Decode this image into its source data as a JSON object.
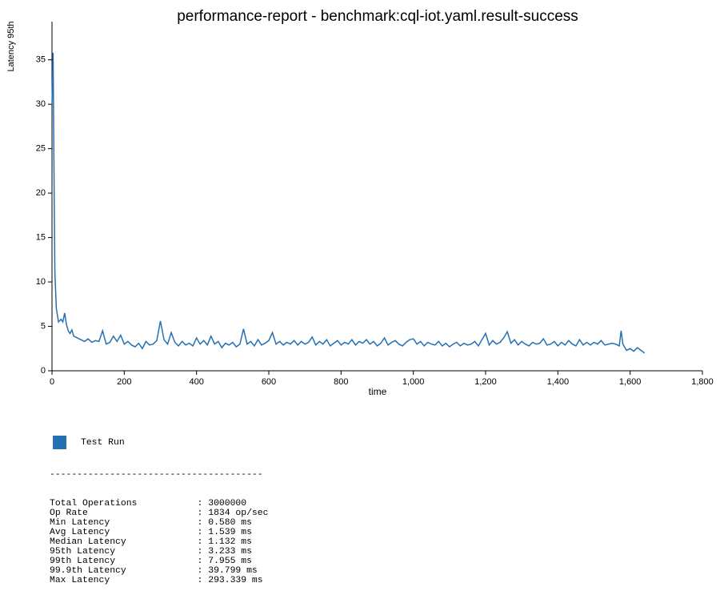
{
  "chart_data": {
    "type": "line",
    "title": "performance-report - benchmark:cql-iot.yaml.result-success",
    "x_label": "time",
    "y_label": "Latency 95th",
    "xlim": [
      0,
      1800
    ],
    "xticks": [
      0,
      200,
      400,
      600,
      800,
      {
        "value": 1000,
        "label": "1,000"
      },
      {
        "value": 1200,
        "label": "1,200"
      },
      {
        "value": 1400,
        "label": "1,400"
      },
      {
        "value": 1600,
        "label": "1,600"
      },
      {
        "value": 1800,
        "label": "1,800"
      }
    ],
    "ylim": [
      0,
      39.3
    ],
    "yticks": [
      0,
      5,
      10,
      15,
      20,
      25,
      30,
      35
    ],
    "x": [
      0,
      3,
      6,
      8,
      12,
      18,
      25,
      30,
      35,
      40,
      45,
      50,
      55,
      60,
      70,
      80,
      90,
      100,
      110,
      120,
      130,
      140,
      150,
      160,
      170,
      180,
      190,
      200,
      210,
      220,
      230,
      240,
      250,
      260,
      270,
      280,
      290,
      300,
      310,
      320,
      330,
      340,
      350,
      360,
      370,
      380,
      390,
      400,
      410,
      420,
      430,
      440,
      450,
      460,
      470,
      480,
      490,
      500,
      510,
      520,
      530,
      540,
      550,
      560,
      570,
      580,
      590,
      600,
      610,
      620,
      630,
      640,
      650,
      660,
      670,
      680,
      690,
      700,
      710,
      720,
      730,
      740,
      750,
      760,
      770,
      780,
      790,
      800,
      810,
      820,
      830,
      840,
      850,
      860,
      870,
      880,
      890,
      900,
      910,
      920,
      930,
      940,
      950,
      960,
      970,
      980,
      990,
      1000,
      1010,
      1020,
      1030,
      1040,
      1050,
      1060,
      1070,
      1080,
      1090,
      1100,
      1110,
      1120,
      1130,
      1140,
      1150,
      1160,
      1170,
      1180,
      1190,
      1200,
      1210,
      1220,
      1230,
      1240,
      1250,
      1260,
      1270,
      1280,
      1290,
      1300,
      1310,
      1320,
      1330,
      1340,
      1350,
      1360,
      1370,
      1380,
      1390,
      1400,
      1410,
      1420,
      1430,
      1440,
      1450,
      1460,
      1470,
      1480,
      1490,
      1500,
      1510,
      1520,
      1530,
      1540,
      1550,
      1560,
      1570,
      1575,
      1580,
      1590,
      1600,
      1610,
      1620,
      1630,
      1640
    ],
    "series": [
      {
        "name": "Test Run",
        "color": "#2470b3",
        "values": [
          30,
          35.8,
          20,
          11,
          7,
          5.5,
          5.8,
          5.5,
          6.5,
          5.2,
          4.5,
          4.2,
          4.6,
          3.9,
          3.7,
          3.5,
          3.3,
          3.6,
          3.2,
          3.4,
          3.3,
          4.5,
          3.0,
          3.2,
          3.9,
          3.3,
          4.0,
          3.0,
          3.3,
          2.9,
          2.7,
          3.1,
          2.5,
          3.3,
          2.9,
          3.0,
          3.4,
          5.6,
          3.5,
          3.0,
          4.3,
          3.2,
          2.8,
          3.3,
          2.9,
          3.1,
          2.8,
          3.7,
          3.0,
          3.4,
          2.9,
          3.9,
          3.0,
          3.3,
          2.6,
          3.1,
          2.9,
          3.2,
          2.7,
          3.0,
          4.7,
          3.0,
          3.3,
          2.8,
          3.5,
          2.9,
          3.1,
          3.4,
          4.3,
          3.0,
          3.3,
          2.9,
          3.2,
          3.0,
          3.4,
          2.9,
          3.3,
          3.0,
          3.2,
          3.8,
          2.9,
          3.3,
          3.0,
          3.5,
          2.8,
          3.1,
          3.4,
          2.9,
          3.2,
          3.0,
          3.5,
          2.9,
          3.3,
          3.1,
          3.5,
          3.0,
          3.3,
          2.8,
          3.1,
          3.7,
          2.9,
          3.2,
          3.4,
          3.0,
          2.8,
          3.2,
          3.5,
          3.6,
          3.0,
          3.3,
          2.8,
          3.2,
          3.0,
          2.9,
          3.3,
          2.8,
          3.1,
          2.7,
          3.0,
          3.2,
          2.8,
          3.1,
          2.9,
          3.0,
          3.3,
          2.8,
          3.5,
          4.2,
          2.9,
          3.4,
          3.0,
          3.2,
          3.7,
          4.4,
          3.1,
          3.5,
          2.9,
          3.3,
          3.0,
          2.8,
          3.2,
          3.0,
          3.1,
          3.6,
          2.9,
          3.0,
          3.3,
          2.8,
          3.2,
          2.9,
          3.4,
          3.0,
          2.8,
          3.5,
          2.9,
          3.2,
          2.9,
          3.2,
          3.0,
          3.4,
          2.9,
          3.0,
          3.1,
          3.0,
          2.8,
          4.5,
          3.0,
          2.3,
          2.5,
          2.2,
          2.6,
          2.3,
          2.0
        ]
      }
    ],
    "stats": {
      "rule": "---------------------------------------",
      "rows": [
        "Total Operations           : 3000000",
        "Op Rate                    : 1834 op/sec",
        "Min Latency                : 0.580 ms",
        "Avg Latency                : 1.539 ms",
        "Median Latency             : 1.132 ms",
        "95th Latency               : 3.233 ms",
        "99th Latency               : 7.955 ms",
        "99.9th Latency             : 39.799 ms",
        "Max Latency                : 293.339 ms"
      ]
    }
  }
}
